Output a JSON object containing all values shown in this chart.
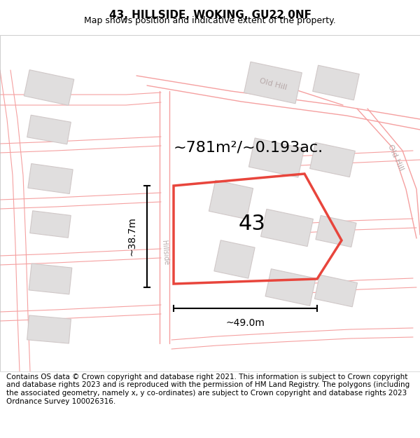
{
  "title": "43, HILLSIDE, WOKING, GU22 0NF",
  "subtitle": "Map shows position and indicative extent of the property.",
  "area_text": "~781m²/~0.193ac.",
  "label_43": "43",
  "dim_width": "~49.0m",
  "dim_height": "~38.7m",
  "footer": "Contains OS data © Crown copyright and database right 2021. This information is subject to Crown copyright and database rights 2023 and is reproduced with the permission of HM Land Registry. The polygons (including the associated geometry, namely x, y co-ordinates) are subject to Crown copyright and database rights 2023 Ordnance Survey 100026316.",
  "bg_color": "#ffffff",
  "map_bg": "#ffffff",
  "plot_color": "#e8453c",
  "road_line_color": "#f5a0a0",
  "road_line_color2": "#e89090",
  "building_fill": "#e0dede",
  "building_edge": "#d0c8c8",
  "road_label_color": "#b8aaaa",
  "figsize": [
    6.0,
    6.25
  ],
  "dpi": 100,
  "title_fontsize": 11,
  "subtitle_fontsize": 9,
  "footer_fontsize": 7.5,
  "area_fontsize": 16,
  "label_fontsize": 22,
  "dim_fontsize": 10
}
